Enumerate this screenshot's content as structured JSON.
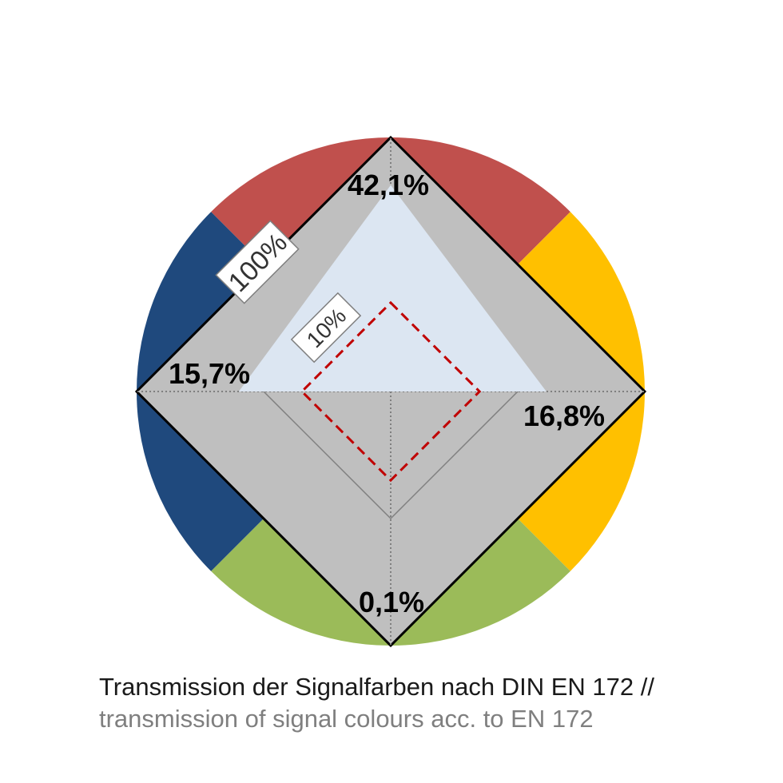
{
  "chart_data": {
    "type": "radar",
    "axes": [
      "red",
      "yellow",
      "green",
      "blue"
    ],
    "axis_colors": {
      "red": "#c0504d",
      "yellow": "#ffc000",
      "green": "#9bbb59",
      "blue": "#1f497d"
    },
    "grid_levels": [
      100,
      10
    ],
    "grid_labels": {
      "outer": "100%",
      "inner": "10%"
    },
    "series": [
      {
        "values": {
          "red": 42.1,
          "yellow": 16.8,
          "green": 0.1,
          "blue": 15.7
        },
        "labels": {
          "red": "42,1%",
          "yellow": "16,8%",
          "green": "0,1%",
          "blue": "15,7%"
        },
        "fill": "#dce6f2"
      }
    ],
    "reference_line_color": "#c00000",
    "background_fill": "#bfbfbf",
    "caption_de": "Transmission der Signalfarben nach DIN EN 172 //",
    "caption_en": "transmission of signal colours acc. to EN 172"
  }
}
